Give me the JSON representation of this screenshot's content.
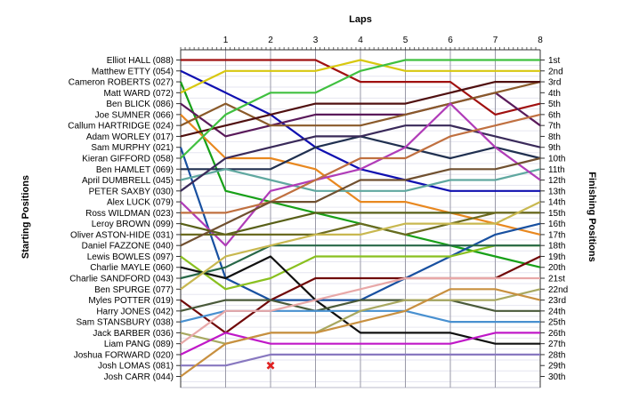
{
  "chart_data": {
    "type": "line",
    "title": "",
    "xlabel": "Laps",
    "ylabel_left": "Starting Positions",
    "ylabel_right": "Finishing Positions",
    "x_ticks": [
      "1",
      "2",
      "3",
      "4",
      "5",
      "6",
      "7",
      "8"
    ],
    "xlim": [
      0,
      8
    ],
    "ylim": [
      1,
      30
    ],
    "grid": true,
    "starting_labels": [
      "Elliot HALL (088)",
      "Matthew ETTY (054)",
      "Cameron ROBERTS (027)",
      "Matt WARD (072)",
      "Ben BLICK (086)",
      "Joe SUMNER (066)",
      "Callum HARTRIDGE (024)",
      "Adam WORLEY (017)",
      "Sam MURPHY (021)",
      "Kieran GIFFORD (058)",
      "Ben HAMLET (069)",
      "April DUMBRELL (045)",
      "PETER SAXBY (030)",
      "Alex LUCK (079)",
      "Ross WILDMAN (023)",
      "Leroy BROWN (099)",
      "Oliver ASTON-HIDE (031)",
      "Daniel FAZZONE (040)",
      "Lewis BOWLES (097)",
      "Charlie MAYLE (060)",
      "Charlie SANDFORD (043)",
      "Ben SPURGE (077)",
      "Myles POTTER (019)",
      "Harry JONES (042)",
      "Sam STANSBURY (038)",
      "Jack BARBER (036)",
      "Liam PANG (089)",
      "Joshua FORWARD (020)",
      "Josh LOMAS (081)",
      "Josh CARR (044)"
    ],
    "finishing_labels": [
      "1st",
      "2nd",
      "3rd",
      "4th",
      "5th",
      "6th",
      "7th",
      "8th",
      "9th",
      "10th",
      "11th",
      "12th",
      "13th",
      "14th",
      "15th",
      "16th",
      "17th",
      "18th",
      "19th",
      "20th",
      "21st",
      "22nd",
      "23rd",
      "24th",
      "25th",
      "26th",
      "27th",
      "28th",
      "29th",
      "30th"
    ],
    "series": [
      {
        "color": "#a01010",
        "positions": [
          1,
          1,
          1,
          1,
          3,
          3,
          3,
          6,
          5
        ]
      },
      {
        "color": "#1010b0",
        "positions": [
          2,
          4,
          6,
          9,
          11,
          12,
          13,
          13,
          13
        ]
      },
      {
        "color": "#18a018",
        "positions": [
          3,
          13,
          14,
          15,
          16,
          17,
          18,
          19,
          20
        ]
      },
      {
        "color": "#d8c810",
        "positions": [
          4,
          2,
          2,
          2,
          1,
          2,
          2,
          2,
          2
        ]
      },
      {
        "color": "#5a1a5a",
        "positions": [
          5,
          8,
          7,
          6,
          6,
          6,
          5,
          4,
          7
        ]
      },
      {
        "color": "#e88820",
        "positions": [
          6,
          10,
          10,
          11,
          14,
          14,
          15,
          16,
          17
        ]
      },
      {
        "color": "#8a5a2a",
        "positions": [
          7,
          5,
          7,
          7,
          7,
          6,
          5,
          4,
          3
        ]
      },
      {
        "color": "#501010",
        "positions": [
          8,
          7,
          6,
          5,
          5,
          5,
          4,
          3,
          3
        ]
      },
      {
        "color": "#1850a0",
        "positions": [
          9,
          21,
          23,
          23,
          23,
          21,
          19,
          17,
          16
        ]
      },
      {
        "color": "#40c040",
        "positions": [
          10,
          6,
          4,
          4,
          2,
          1,
          1,
          1,
          1
        ]
      },
      {
        "color": "#203050",
        "positions": [
          11,
          11,
          11,
          9,
          8,
          9,
          10,
          9,
          10
        ]
      },
      {
        "color": "#60a8a0",
        "positions": [
          12,
          11,
          12,
          13,
          13,
          13,
          12,
          12,
          11
        ]
      },
      {
        "color": "#3a2a5a",
        "positions": [
          13,
          10,
          9,
          8,
          8,
          7,
          7,
          8,
          9
        ]
      },
      {
        "color": "#b03cb8",
        "positions": [
          14,
          18,
          13,
          12,
          11,
          9,
          5,
          9,
          12
        ]
      },
      {
        "color": "#c07040",
        "positions": [
          15,
          15,
          14,
          12,
          10,
          10,
          8,
          7,
          6
        ]
      },
      {
        "color": "#586018",
        "positions": [
          16,
          17,
          16,
          15,
          15,
          15,
          15,
          15,
          15
        ]
      },
      {
        "color": "#6a6a20",
        "positions": [
          17,
          17,
          17,
          17,
          16,
          17,
          16,
          15,
          15
        ]
      },
      {
        "color": "#705030",
        "positions": [
          18,
          16,
          14,
          14,
          12,
          12,
          11,
          11,
          10
        ]
      },
      {
        "color": "#8ac020",
        "positions": [
          19,
          22,
          21,
          19,
          19,
          19,
          19,
          18,
          18
        ]
      },
      {
        "color": "#101010",
        "positions": [
          20,
          21,
          19,
          23,
          26,
          26,
          26,
          27,
          27
        ]
      },
      {
        "color": "#286848",
        "positions": [
          21,
          20,
          18,
          18,
          18,
          18,
          18,
          18,
          18
        ]
      },
      {
        "color": "#c8b850",
        "positions": [
          22,
          19,
          18,
          17,
          17,
          16,
          16,
          16,
          14
        ]
      },
      {
        "color": "#700808",
        "positions": [
          23,
          26,
          23,
          21,
          21,
          21,
          21,
          21,
          19
        ]
      },
      {
        "color": "#4a5a3a",
        "positions": [
          24,
          23,
          23,
          24,
          23,
          23,
          23,
          24,
          24
        ]
      },
      {
        "color": "#4890d0",
        "positions": [
          25,
          24,
          24,
          24,
          24,
          24,
          25,
          25,
          25
        ]
      },
      {
        "color": "#a8a860",
        "positions": [
          26,
          27,
          26,
          26,
          24,
          23,
          23,
          23,
          22
        ]
      },
      {
        "color": "#e8a8a8",
        "positions": [
          27,
          24,
          24,
          23,
          22,
          21,
          21,
          21,
          21
        ]
      },
      {
        "color": "#c018c8",
        "positions": [
          28,
          26,
          27,
          27,
          27,
          27,
          27,
          26,
          26
        ]
      },
      {
        "color": "#8878c0",
        "positions": [
          29,
          29,
          28,
          28,
          28,
          28,
          28,
          28,
          28
        ]
      },
      {
        "color": "#c89040",
        "positions": [
          30,
          27,
          26,
          26,
          25,
          24,
          22,
          22,
          23
        ]
      }
    ],
    "retired": {
      "series_index": 2,
      "lap": 2,
      "position": 29,
      "color": "#e02020"
    }
  }
}
